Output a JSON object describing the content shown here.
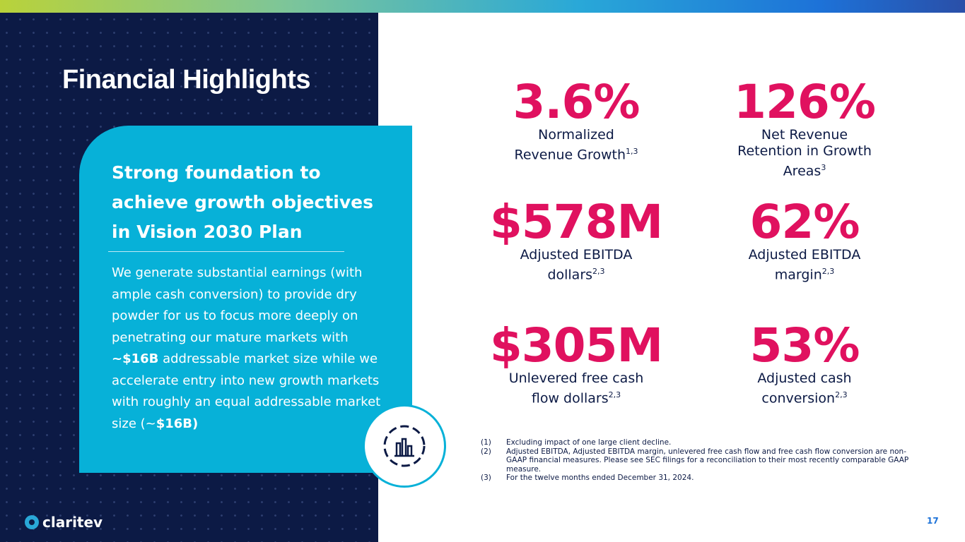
{
  "header": {
    "title": "Financial Highlights"
  },
  "card": {
    "heading": "Strong foundation to achieve growth objectives in Vision 2030 Plan",
    "body": [
      {
        "text": "We generate substantial earnings (with ample cash conversion) to provide dry powder for us to focus more deeply on penetrating our mature markets with ",
        "bold": false
      },
      {
        "text": "~$16B",
        "bold": true
      },
      {
        "text": " addressable market size while we accelerate entry into new growth markets with roughly an equal addressable market size (~",
        "bold": false
      },
      {
        "text": "$16B)",
        "bold": true
      }
    ]
  },
  "metrics": [
    {
      "value": "3.6%",
      "lines": [
        "Normalized",
        "Revenue Growth"
      ],
      "sup": "1,3"
    },
    {
      "value": "126%",
      "lines": [
        "Net Revenue",
        "Retention in Growth",
        "Areas"
      ],
      "sup": "3"
    },
    {
      "value": "$578M",
      "lines": [
        "Adjusted EBITDA",
        "dollars"
      ],
      "sup": "2,3"
    },
    {
      "value": "62%",
      "lines": [
        "Adjusted EBITDA",
        "margin"
      ],
      "sup": "2,3"
    },
    {
      "value": "$305M",
      "lines": [
        "Unlevered free cash",
        "flow dollars"
      ],
      "sup": "2,3"
    },
    {
      "value": "53%",
      "lines": [
        "Adjusted cash",
        "conversion"
      ],
      "sup": "2,3"
    }
  ],
  "footnotes": [
    {
      "num": "(1)",
      "text": "Excluding impact of one large client decline."
    },
    {
      "num": "(2)",
      "text": "Adjusted EBITDA, Adjusted EBITDA margin, unlevered free cash flow and free cash flow conversion are non-GAAP financial measures.  Please see SEC filings for a reconciliation to their most recently comparable GAAP measure."
    },
    {
      "num": "(3)",
      "text": "For the twelve months ended December 31, 2024."
    }
  ],
  "footer": {
    "logo": "claritev",
    "page": "17"
  }
}
